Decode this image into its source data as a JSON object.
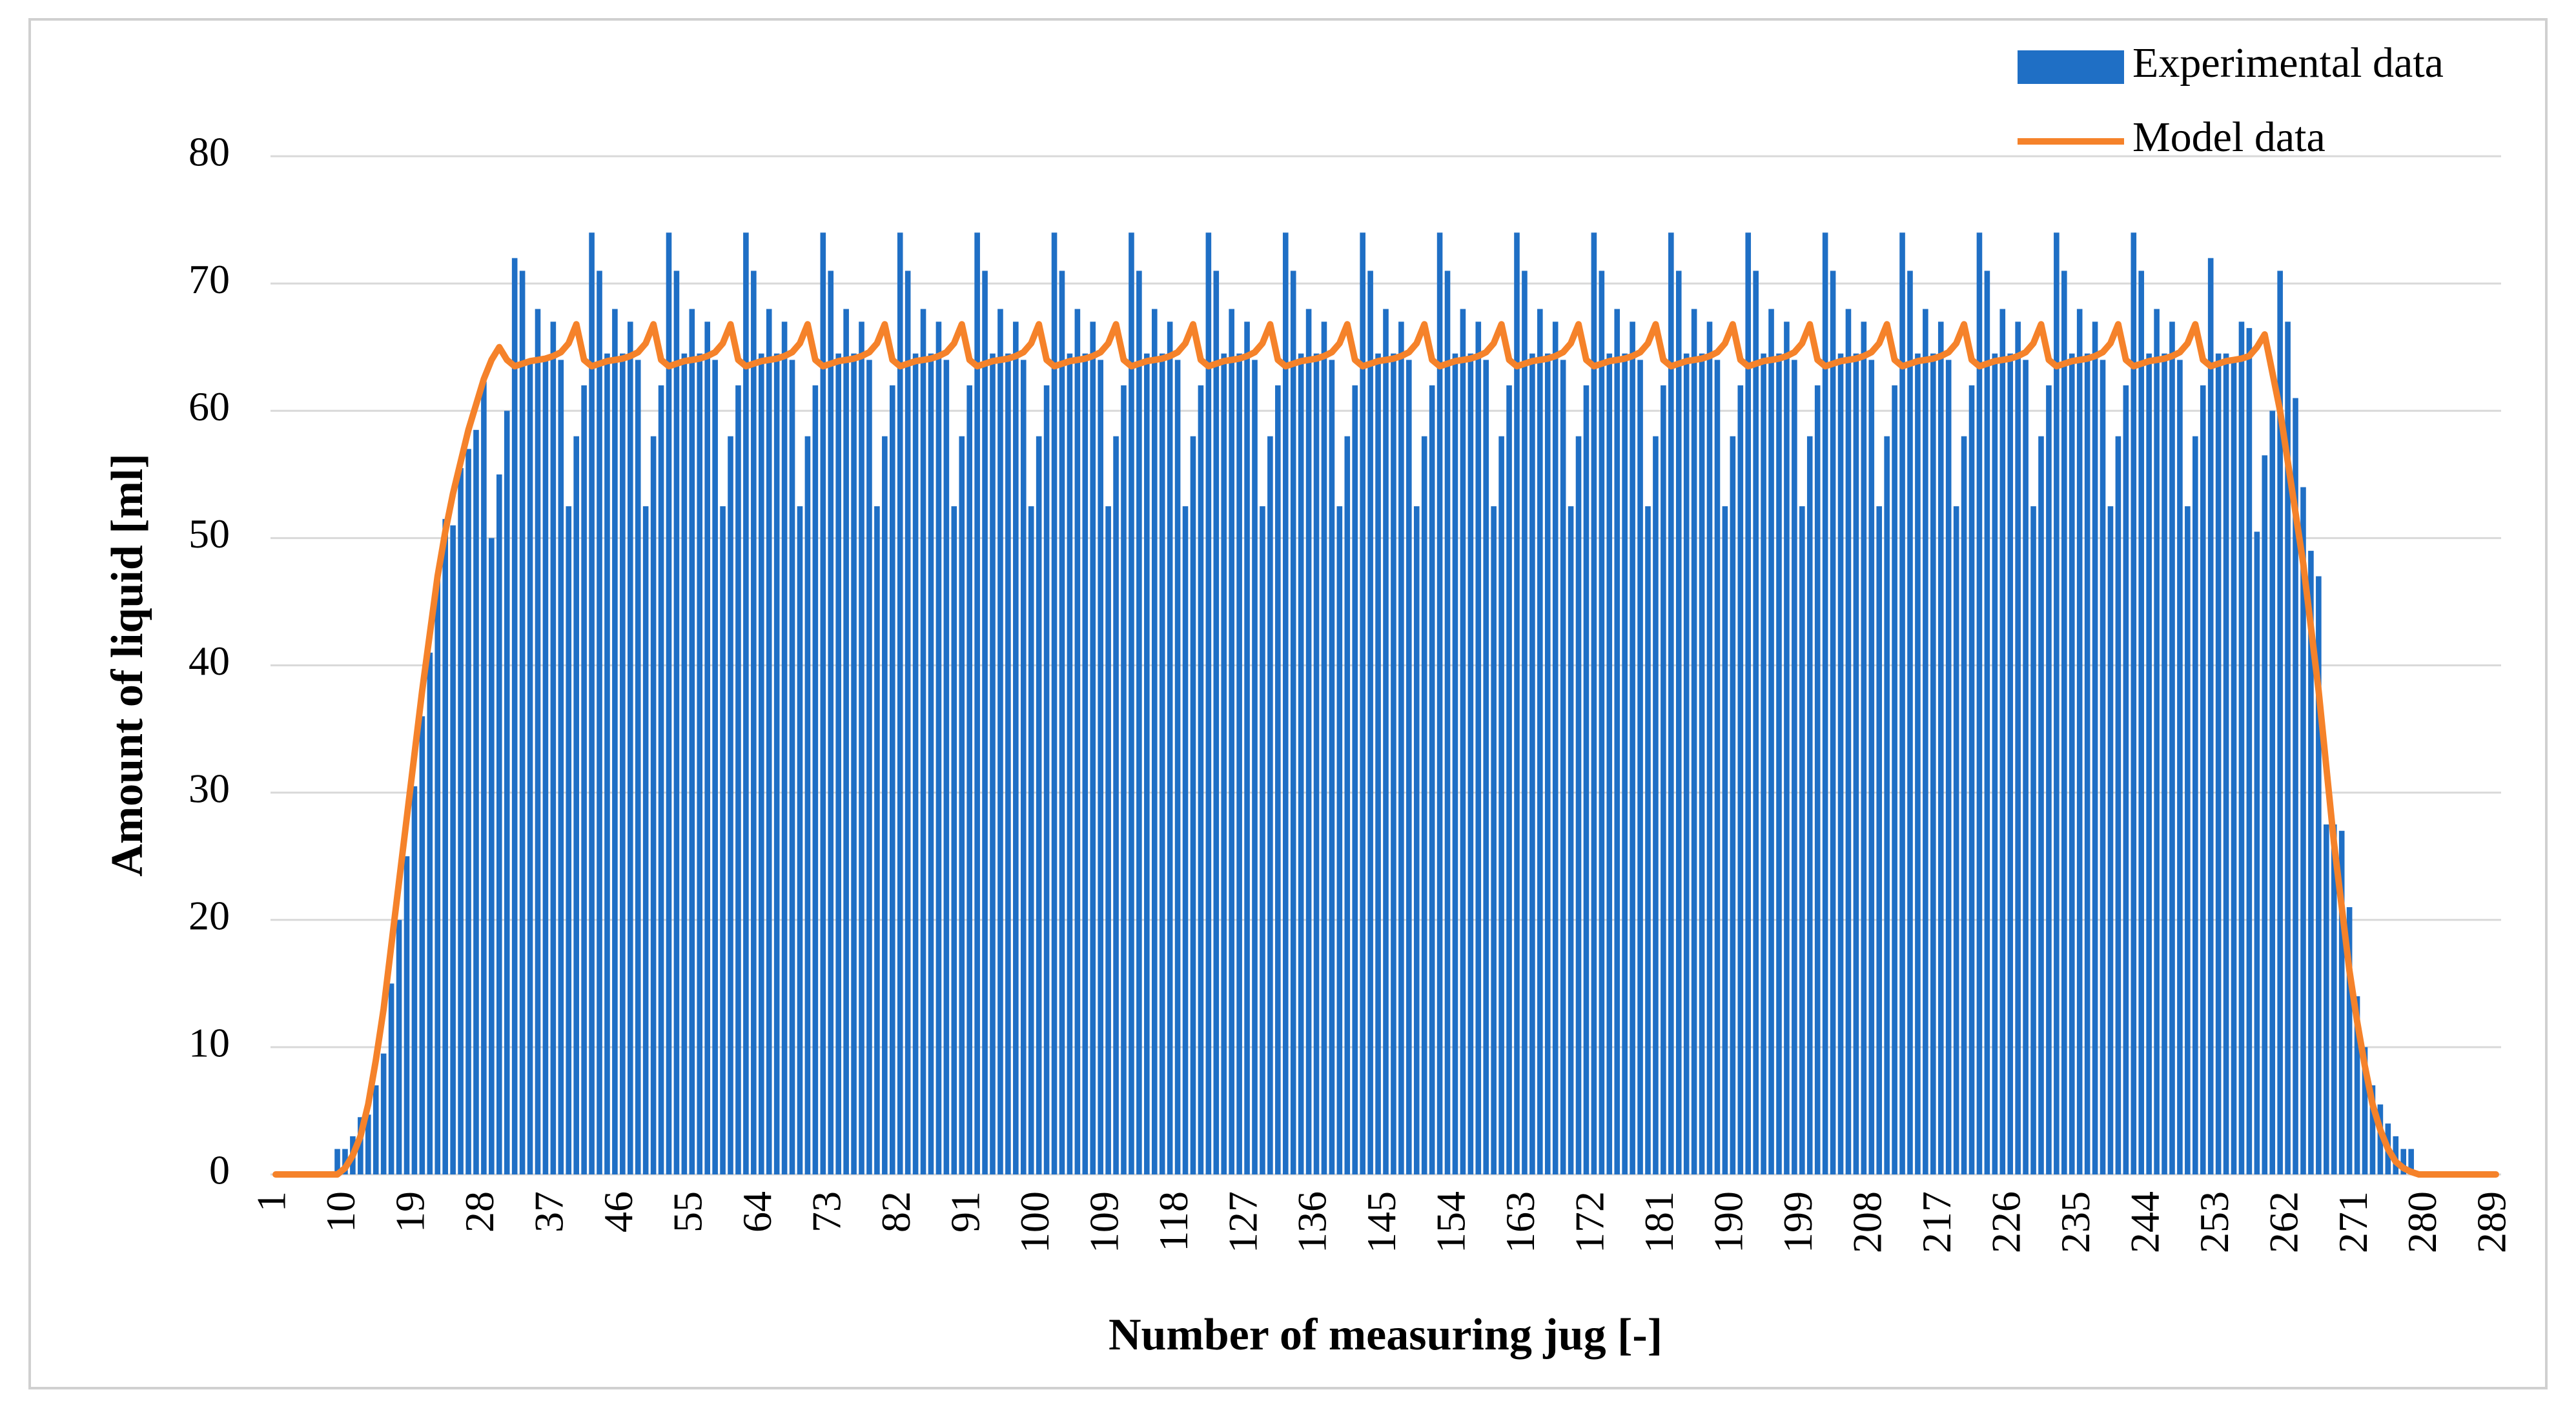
{
  "chart_data": {
    "type": "bar",
    "categories": [
      "1",
      null,
      null,
      null,
      null,
      null,
      null,
      null,
      null,
      "10",
      null,
      null,
      null,
      null,
      null,
      null,
      null,
      null,
      "19",
      null,
      null,
      null,
      null,
      null,
      null,
      null,
      null,
      "28",
      null,
      null,
      null,
      null,
      null,
      null,
      null,
      null,
      "37",
      null,
      null,
      null,
      null,
      null,
      null,
      null,
      null,
      "46",
      null,
      null,
      null,
      null,
      null,
      null,
      null,
      null,
      "55",
      null,
      null,
      null,
      null,
      null,
      null,
      null,
      null,
      "64",
      null,
      null,
      null,
      null,
      null,
      null,
      null,
      null,
      "73",
      null,
      null,
      null,
      null,
      null,
      null,
      null,
      null,
      "82",
      null,
      null,
      null,
      null,
      null,
      null,
      null,
      null,
      "91",
      null,
      null,
      null,
      null,
      null,
      null,
      null,
      null,
      "100",
      null,
      null,
      null,
      null,
      null,
      null,
      null,
      null,
      "109",
      null,
      null,
      null,
      null,
      null,
      null,
      null,
      null,
      "118",
      null,
      null,
      null,
      null,
      null,
      null,
      null,
      null,
      "127",
      null,
      null,
      null,
      null,
      null,
      null,
      null,
      null,
      "136",
      null,
      null,
      null,
      null,
      null,
      null,
      null,
      null,
      "145",
      null,
      null,
      null,
      null,
      null,
      null,
      null,
      null,
      "154",
      null,
      null,
      null,
      null,
      null,
      null,
      null,
      null,
      "163",
      null,
      null,
      null,
      null,
      null,
      null,
      null,
      null,
      "172",
      null,
      null,
      null,
      null,
      null,
      null,
      null,
      null,
      "181",
      null,
      null,
      null,
      null,
      null,
      null,
      null,
      null,
      "190",
      null,
      null,
      null,
      null,
      null,
      null,
      null,
      null,
      "199",
      null,
      null,
      null,
      null,
      null,
      null,
      null,
      null,
      "208",
      null,
      null,
      null,
      null,
      null,
      null,
      null,
      null,
      "217",
      null,
      null,
      null,
      null,
      null,
      null,
      null,
      null,
      "226",
      null,
      null,
      null,
      null,
      null,
      null,
      null,
      null,
      "235",
      null,
      null,
      null,
      null,
      null,
      null,
      null,
      null,
      "244",
      null,
      null,
      null,
      null,
      null,
      null,
      null,
      null,
      "253",
      null,
      null,
      null,
      null,
      null,
      null,
      null,
      null,
      "262",
      null,
      null,
      null,
      null,
      null,
      null,
      null,
      null,
      "271",
      null,
      null,
      null,
      null,
      null,
      null,
      null,
      null,
      "280",
      null,
      null,
      null,
      null,
      null,
      null,
      null,
      null,
      "289"
    ],
    "series": [
      {
        "name": "Experimental data",
        "type": "bar",
        "color": "#1f6fc5",
        "values": [
          0,
          0,
          0,
          0,
          0,
          0,
          0,
          0,
          2,
          2,
          3,
          4.5,
          4.7,
          7,
          9.5,
          15,
          20,
          25,
          30.5,
          36,
          41,
          47,
          51.5,
          51,
          55.5,
          57,
          58.5,
          62.3,
          50,
          55,
          60,
          72,
          71,
          64,
          68,
          64,
          67,
          64,
          52.5,
          58,
          62,
          74,
          71,
          64.5,
          68,
          64.5,
          67,
          64,
          52.5,
          58,
          62,
          74,
          71,
          64.5,
          68,
          64.5,
          67,
          64,
          52.5,
          58,
          62,
          74,
          71,
          64.5,
          68,
          64.5,
          67,
          64,
          52.5,
          58,
          62,
          74,
          71,
          64.5,
          68,
          64.5,
          67,
          64,
          52.5,
          58,
          62,
          74,
          71,
          64.5,
          68,
          64.5,
          67,
          64,
          52.5,
          58,
          62,
          74,
          71,
          64.5,
          68,
          64.5,
          67,
          64,
          52.5,
          58,
          62,
          74,
          71,
          64.5,
          68,
          64.5,
          67,
          64,
          52.5,
          58,
          62,
          74,
          71,
          64.5,
          68,
          64.5,
          67,
          64,
          52.5,
          58,
          62,
          74,
          71,
          64.5,
          68,
          64.5,
          67,
          64,
          52.5,
          58,
          62,
          74,
          71,
          64.5,
          68,
          64.5,
          67,
          64,
          52.5,
          58,
          62,
          74,
          71,
          64.5,
          68,
          64.5,
          67,
          64,
          52.5,
          58,
          62,
          74,
          71,
          64.5,
          68,
          64.5,
          67,
          64,
          52.5,
          58,
          62,
          74,
          71,
          64.5,
          68,
          64.5,
          67,
          64,
          52.5,
          58,
          62,
          74,
          71,
          64.5,
          68,
          64.5,
          67,
          64,
          52.5,
          58,
          62,
          74,
          71,
          64.5,
          68,
          64.5,
          67,
          64,
          52.5,
          58,
          62,
          74,
          71,
          64.5,
          68,
          64.5,
          67,
          64,
          52.5,
          58,
          62,
          74,
          71,
          64.5,
          68,
          64.5,
          67,
          64,
          52.5,
          58,
          62,
          74,
          71,
          64.5,
          68,
          64.5,
          67,
          64,
          52.5,
          58,
          62,
          74,
          71,
          64.5,
          68,
          64.5,
          67,
          64,
          52.5,
          58,
          62,
          74,
          71,
          64.5,
          68,
          64.5,
          67,
          64,
          52.5,
          58,
          62,
          74,
          71,
          64.5,
          68,
          64.5,
          67,
          64,
          52.5,
          58,
          62,
          72,
          64.5,
          64.5,
          64,
          67,
          66.5,
          50.5,
          56.5,
          60,
          71,
          67,
          61,
          54,
          49,
          47,
          27.5,
          27.5,
          27,
          21,
          14,
          10,
          7,
          5.5,
          4,
          3,
          2,
          2,
          0,
          0,
          0,
          0,
          0,
          0,
          0,
          0,
          0,
          0,
          0
        ]
      },
      {
        "name": "Model data",
        "type": "line",
        "color": "#f5822a",
        "values": [
          0,
          0,
          0,
          0,
          0,
          0,
          0,
          0,
          0,
          0.5,
          1.5,
          3,
          5.5,
          9,
          13,
          18,
          23,
          28,
          33,
          38,
          42.5,
          47,
          50.5,
          53.5,
          56,
          58.5,
          60.5,
          62.5,
          64,
          65,
          64,
          63.5,
          63.7,
          63.9,
          64,
          64.1,
          64.3,
          64.6,
          65.3,
          66.8,
          64,
          63.5,
          63.7,
          63.9,
          64,
          64.1,
          64.3,
          64.6,
          65.3,
          66.8,
          64,
          63.5,
          63.7,
          63.9,
          64,
          64.1,
          64.3,
          64.6,
          65.3,
          66.8,
          64,
          63.5,
          63.7,
          63.9,
          64,
          64.1,
          64.3,
          64.6,
          65.3,
          66.8,
          64,
          63.5,
          63.7,
          63.9,
          64,
          64.1,
          64.3,
          64.6,
          65.3,
          66.8,
          64,
          63.5,
          63.7,
          63.9,
          64,
          64.1,
          64.3,
          64.6,
          65.3,
          66.8,
          64,
          63.5,
          63.7,
          63.9,
          64,
          64.1,
          64.3,
          64.6,
          65.3,
          66.8,
          64,
          63.5,
          63.7,
          63.9,
          64,
          64.1,
          64.3,
          64.6,
          65.3,
          66.8,
          64,
          63.5,
          63.7,
          63.9,
          64,
          64.1,
          64.3,
          64.6,
          65.3,
          66.8,
          64,
          63.5,
          63.7,
          63.9,
          64,
          64.1,
          64.3,
          64.6,
          65.3,
          66.8,
          64,
          63.5,
          63.7,
          63.9,
          64,
          64.1,
          64.3,
          64.6,
          65.3,
          66.8,
          64,
          63.5,
          63.7,
          63.9,
          64,
          64.1,
          64.3,
          64.6,
          65.3,
          66.8,
          64,
          63.5,
          63.7,
          63.9,
          64,
          64.1,
          64.3,
          64.6,
          65.3,
          66.8,
          64,
          63.5,
          63.7,
          63.9,
          64,
          64.1,
          64.3,
          64.6,
          65.3,
          66.8,
          64,
          63.5,
          63.7,
          63.9,
          64,
          64.1,
          64.3,
          64.6,
          65.3,
          66.8,
          64,
          63.5,
          63.7,
          63.9,
          64,
          64.1,
          64.3,
          64.6,
          65.3,
          66.8,
          64,
          63.5,
          63.7,
          63.9,
          64,
          64.1,
          64.3,
          64.6,
          65.3,
          66.8,
          64,
          63.5,
          63.7,
          63.9,
          64,
          64.1,
          64.3,
          64.6,
          65.3,
          66.8,
          64,
          63.5,
          63.7,
          63.9,
          64,
          64.1,
          64.3,
          64.6,
          65.3,
          66.8,
          64,
          63.5,
          63.7,
          63.9,
          64,
          64.1,
          64.3,
          64.6,
          65.3,
          66.8,
          64,
          63.5,
          63.7,
          63.9,
          64,
          64.1,
          64.3,
          64.6,
          65.3,
          66.8,
          64,
          63.5,
          63.7,
          63.9,
          64,
          64.1,
          64.3,
          64.6,
          65.3,
          66.8,
          64,
          63.5,
          63.7,
          63.9,
          64,
          64.1,
          64.3,
          65,
          66,
          63,
          60,
          56,
          52,
          48,
          43,
          38,
          32,
          26,
          21,
          16,
          12,
          8.5,
          5.5,
          3.5,
          2,
          1,
          0.5,
          0.2,
          0,
          0,
          0,
          0,
          0,
          0,
          0,
          0,
          0,
          0,
          0
        ]
      }
    ],
    "xlabel": "Number of measuring jug [-]",
    "ylabel": "Amount of liquid [ml]",
    "ylim": [
      0,
      80
    ],
    "yticks": [
      0,
      10,
      20,
      30,
      40,
      50,
      60,
      70,
      80
    ],
    "grid": true,
    "legend": "top right"
  }
}
